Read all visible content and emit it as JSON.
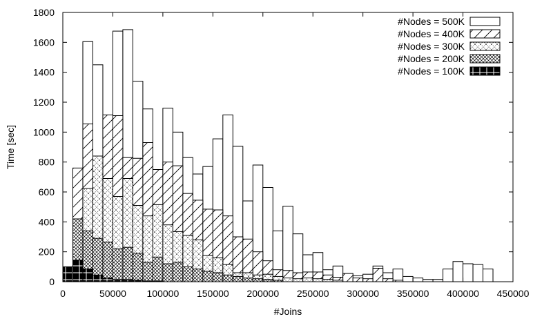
{
  "chart_data": {
    "type": "bar",
    "xlabel": "#Joins",
    "ylabel": "Time [sec]",
    "xlim": [
      0,
      450000
    ],
    "ylim": [
      0,
      1800
    ],
    "xticks": [
      0,
      50000,
      100000,
      150000,
      200000,
      250000,
      300000,
      350000,
      400000,
      450000
    ],
    "yticks": [
      0,
      200,
      400,
      600,
      800,
      1000,
      1200,
      1400,
      1600,
      1800
    ],
    "bin_width": 10000,
    "legend_placement": "top-right",
    "series": [
      {
        "name": "#Nodes = 500K",
        "pattern": "white",
        "points": [
          [
            25000,
            1605
          ],
          [
            35000,
            1450
          ],
          [
            55000,
            1675
          ],
          [
            65000,
            1685
          ],
          [
            75000,
            1340
          ],
          [
            85000,
            1155
          ],
          [
            105000,
            1160
          ],
          [
            115000,
            1000
          ],
          [
            125000,
            830
          ],
          [
            135000,
            720
          ],
          [
            145000,
            770
          ],
          [
            155000,
            955
          ],
          [
            165000,
            1115
          ],
          [
            175000,
            905
          ],
          [
            185000,
            540
          ],
          [
            195000,
            780
          ],
          [
            205000,
            630
          ],
          [
            215000,
            340
          ],
          [
            225000,
            505
          ],
          [
            235000,
            320
          ],
          [
            245000,
            180
          ],
          [
            255000,
            195
          ],
          [
            265000,
            80
          ],
          [
            275000,
            105
          ],
          [
            285000,
            55
          ],
          [
            295000,
            40
          ],
          [
            305000,
            50
          ],
          [
            315000,
            105
          ],
          [
            325000,
            60
          ],
          [
            335000,
            85
          ],
          [
            345000,
            35
          ],
          [
            355000,
            25
          ],
          [
            365000,
            15
          ],
          [
            375000,
            15
          ],
          [
            385000,
            85
          ],
          [
            395000,
            135
          ],
          [
            405000,
            120
          ],
          [
            415000,
            115
          ],
          [
            425000,
            85
          ]
        ]
      },
      {
        "name": "#Nodes = 400K",
        "pattern": "hatch",
        "points": [
          [
            15000,
            760
          ],
          [
            25000,
            1055
          ],
          [
            35000,
            770
          ],
          [
            45000,
            1115
          ],
          [
            55000,
            1110
          ],
          [
            65000,
            830
          ],
          [
            75000,
            825
          ],
          [
            85000,
            930
          ],
          [
            95000,
            750
          ],
          [
            105000,
            800
          ],
          [
            115000,
            775
          ],
          [
            125000,
            590
          ],
          [
            135000,
            545
          ],
          [
            145000,
            485
          ],
          [
            155000,
            480
          ],
          [
            165000,
            440
          ],
          [
            175000,
            300
          ],
          [
            185000,
            285
          ],
          [
            195000,
            200
          ],
          [
            205000,
            140
          ],
          [
            215000,
            80
          ],
          [
            225000,
            75
          ],
          [
            235000,
            60
          ],
          [
            245000,
            65
          ],
          [
            255000,
            65
          ],
          [
            265000,
            45
          ],
          [
            275000,
            30
          ],
          [
            285000,
            55
          ],
          [
            295000,
            25
          ],
          [
            305000,
            20
          ],
          [
            315000,
            90
          ],
          [
            325000,
            20
          ],
          [
            335000,
            10
          ]
        ]
      },
      {
        "name": "#Nodes = 300K",
        "pattern": "xdots",
        "points": [
          [
            15000,
            420
          ],
          [
            25000,
            625
          ],
          [
            35000,
            840
          ],
          [
            45000,
            690
          ],
          [
            55000,
            570
          ],
          [
            65000,
            690
          ],
          [
            75000,
            510
          ],
          [
            85000,
            440
          ],
          [
            95000,
            515
          ],
          [
            105000,
            380
          ],
          [
            115000,
            335
          ],
          [
            125000,
            310
          ],
          [
            135000,
            280
          ],
          [
            145000,
            175
          ],
          [
            155000,
            160
          ],
          [
            165000,
            115
          ],
          [
            175000,
            60
          ],
          [
            185000,
            60
          ],
          [
            195000,
            45
          ],
          [
            205000,
            50
          ],
          [
            215000,
            35
          ],
          [
            225000,
            25
          ],
          [
            235000,
            20
          ],
          [
            245000,
            25
          ],
          [
            255000,
            20
          ],
          [
            265000,
            15
          ],
          [
            275000,
            10
          ]
        ]
      },
      {
        "name": "#Nodes = 200K",
        "pattern": "crosshatch",
        "points": [
          [
            15000,
            420
          ],
          [
            25000,
            340
          ],
          [
            35000,
            290
          ],
          [
            45000,
            265
          ],
          [
            55000,
            220
          ],
          [
            65000,
            230
          ],
          [
            75000,
            190
          ],
          [
            85000,
            130
          ],
          [
            95000,
            165
          ],
          [
            105000,
            120
          ],
          [
            115000,
            130
          ],
          [
            125000,
            100
          ],
          [
            135000,
            85
          ],
          [
            145000,
            70
          ],
          [
            155000,
            60
          ],
          [
            165000,
            45
          ],
          [
            175000,
            35
          ],
          [
            185000,
            25
          ],
          [
            195000,
            20
          ],
          [
            205000,
            15
          ],
          [
            215000,
            10
          ]
        ]
      },
      {
        "name": "#Nodes = 100K",
        "pattern": "black",
        "points": [
          [
            5000,
            100
          ],
          [
            15000,
            145
          ],
          [
            25000,
            85
          ],
          [
            35000,
            45
          ],
          [
            45000,
            25
          ],
          [
            55000,
            15
          ],
          [
            65000,
            15
          ],
          [
            75000,
            10
          ],
          [
            85000,
            5
          ],
          [
            95000,
            5
          ]
        ]
      }
    ]
  }
}
